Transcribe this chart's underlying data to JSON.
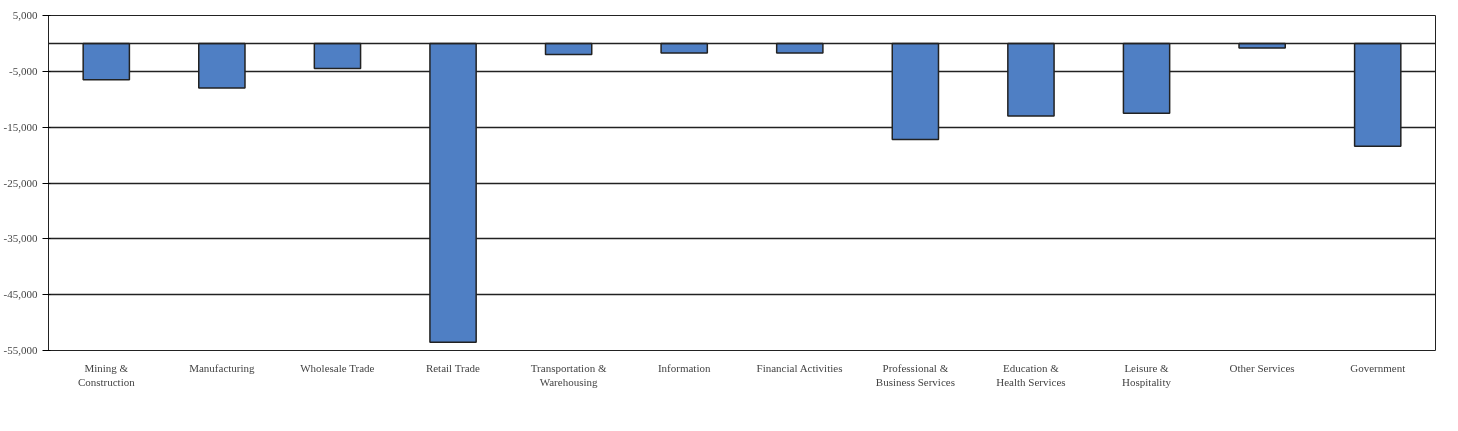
{
  "chart_data": {
    "type": "bar",
    "categories": [
      "Mining & Construction",
      "Manufacturing",
      "Wholesale Trade",
      "Retail Trade",
      "Transportation & Warehousing",
      "Information",
      "Financial Activities",
      "Professional & Business Services",
      "Education & Health Services",
      "Leisure & Hospitality",
      "Other Services",
      "Government"
    ],
    "values": [
      -6500,
      -8000,
      -4500,
      -53500,
      -2000,
      -1700,
      -1700,
      -17200,
      -13000,
      -12500,
      -800,
      -18400
    ],
    "color": "#4f7fc4",
    "ylim": [
      -55000,
      5000
    ],
    "yticks": [
      {
        "value": 5000,
        "label": "5,000"
      },
      {
        "value": -5000,
        "label": "-5,000"
      },
      {
        "value": -15000,
        "label": "-15,000"
      },
      {
        "value": -25000,
        "label": "-25,000"
      },
      {
        "value": -35000,
        "label": "-35,000"
      },
      {
        "value": -45000,
        "label": "-45,000"
      },
      {
        "value": -55000,
        "label": "-55,000"
      }
    ],
    "ref_lines": [
      {
        "axis": "y",
        "value": 0,
        "color": "#222222"
      }
    ],
    "grid": "y"
  }
}
